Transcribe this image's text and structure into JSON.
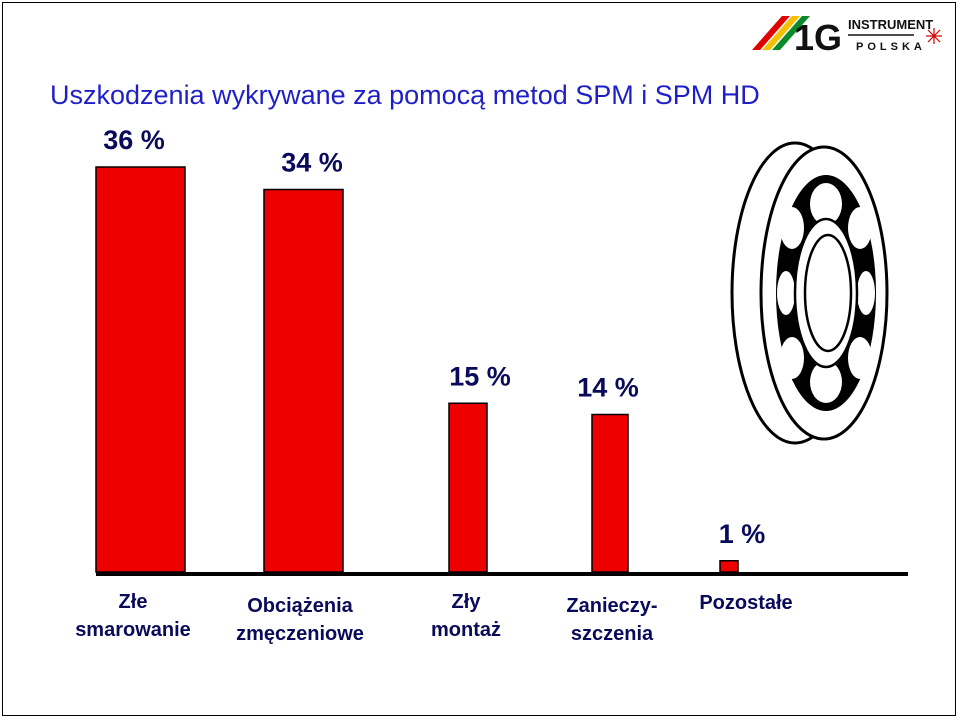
{
  "slide": {
    "title": "Uszkodzenia wykrywane za pomocą metod SPM i SPM HD"
  },
  "logo": {
    "mark": "1G",
    "word1": "INSTRUMENT",
    "word2": "POLSKA"
  },
  "colors": {
    "bar": "#ee0000",
    "title": "#1f1fc8",
    "labels": "#0a0a5a"
  },
  "chart_data": {
    "type": "bar",
    "categories": [
      [
        "Złe",
        "smarowanie"
      ],
      [
        "Obciążenia",
        "zmęczeniowe"
      ],
      [
        "Zły",
        "montaż"
      ],
      [
        "Zanieczy-",
        "szczenia"
      ],
      [
        "Pozostałe"
      ]
    ],
    "values": [
      36,
      34,
      15,
      14,
      1
    ],
    "value_labels": [
      "36 %",
      "34 %",
      "15 %",
      "14 %",
      "1 %"
    ],
    "ylim": [
      0,
      40
    ],
    "grid": false,
    "legend": "none"
  }
}
